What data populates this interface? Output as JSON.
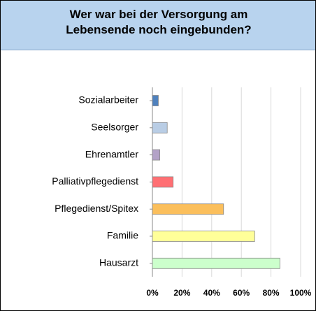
{
  "chart_data": {
    "type": "bar",
    "orientation": "horizontal",
    "title": "Wer war bei der Versorgung am Lebensende noch eingebunden?",
    "categories": [
      "Sozialarbeiter",
      "Seelsorger",
      "Ehrenamtler",
      "Palliativpflegedienst",
      "Pflegedienst/Spitex",
      "Familie",
      "Hausarzt"
    ],
    "values": [
      4,
      10,
      5,
      14,
      48,
      69,
      86
    ],
    "colors": [
      "#4f81bd",
      "#b9cde5",
      "#b3a2c7",
      "#ff6f73",
      "#fbbf5c",
      "#ffff99",
      "#ccffcc"
    ],
    "xlim": [
      0,
      100
    ],
    "xticks": [
      {
        "value": 0,
        "label": "0%"
      },
      {
        "value": 20,
        "label": "20%"
      },
      {
        "value": 40,
        "label": "40%"
      },
      {
        "value": 60,
        "label": "60%"
      },
      {
        "value": 80,
        "label": "80%"
      },
      {
        "value": 100,
        "label": "100%"
      }
    ],
    "grid": true
  }
}
